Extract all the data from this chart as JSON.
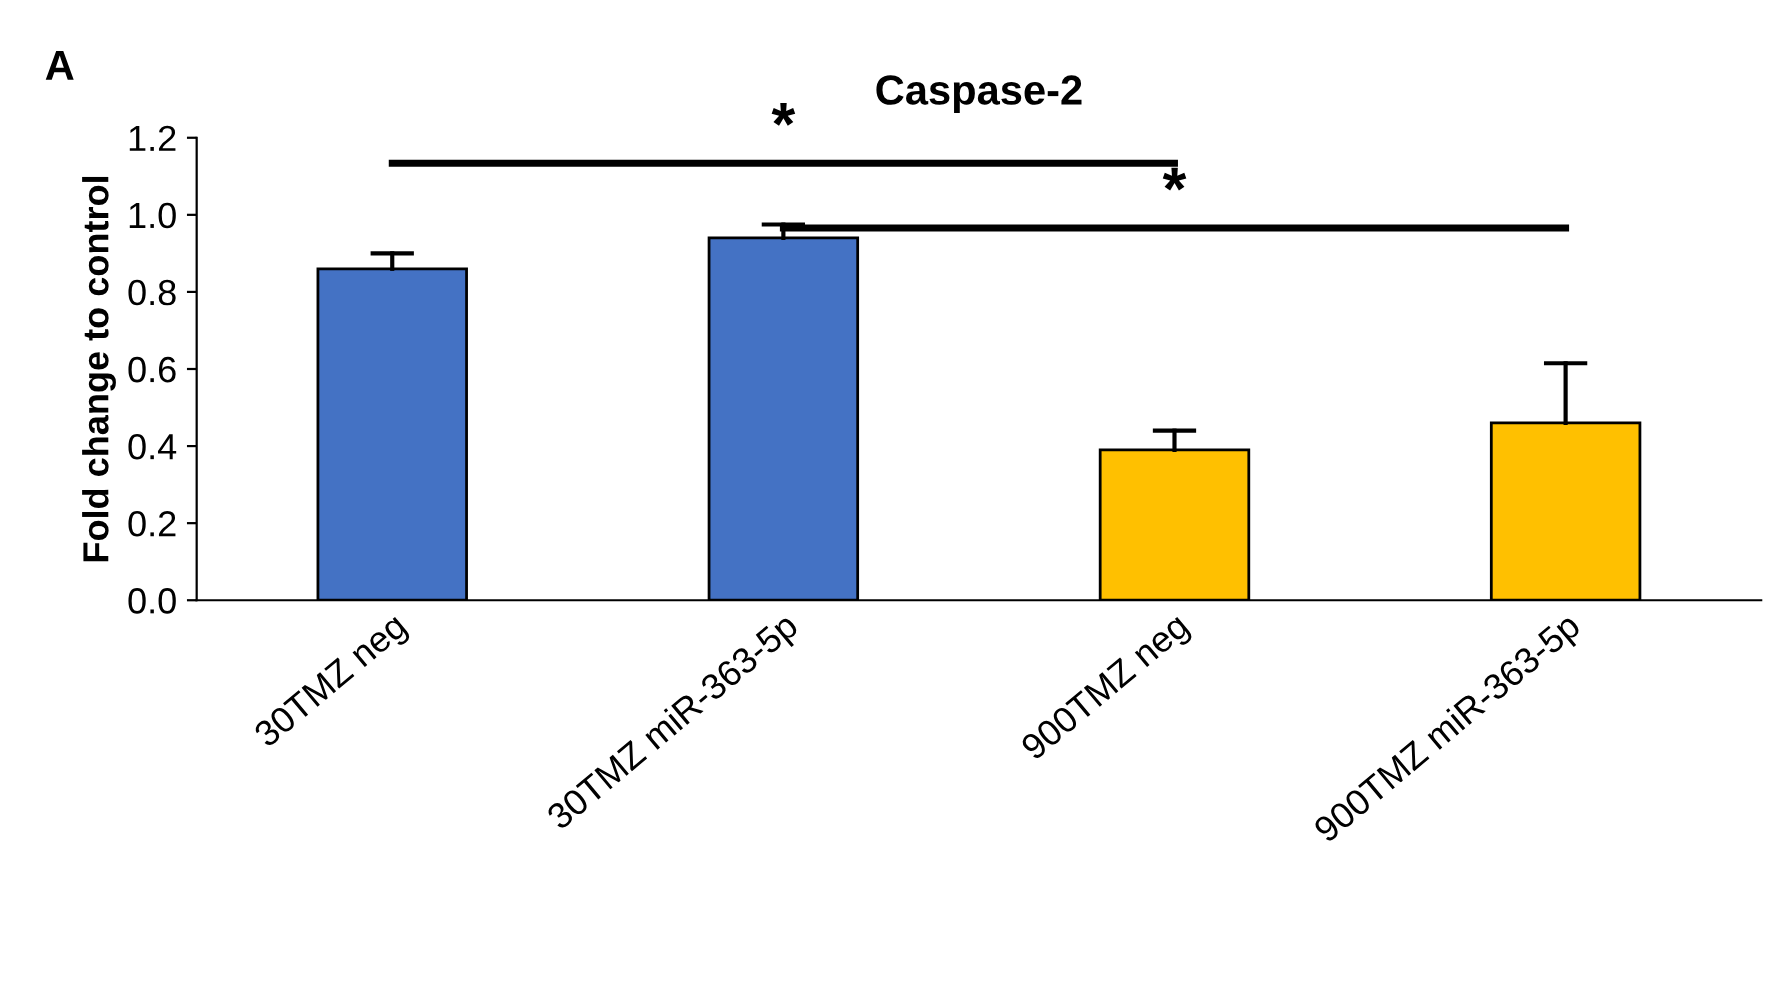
{
  "chart_data": {
    "type": "bar",
    "title": "Caspase-2",
    "ylabel": "Fold change to control",
    "categories": [
      "30TMZ neg",
      "30TMZ miR-363-5p",
      "900TMZ neg",
      "900TMZ miR-363-5p"
    ],
    "values": [
      0.86,
      0.94,
      0.39,
      0.46
    ],
    "colors": [
      "#4472c4",
      "#4472c4",
      "#ffc000",
      "#ffc000"
    ],
    "errors": [
      [
        0.86,
        0.9
      ],
      [
        0.94,
        0.975
      ],
      [
        0.39,
        0.44
      ],
      [
        0.46,
        0.615
      ]
    ],
    "ylim": [
      0,
      1.2
    ],
    "yticks": [
      {
        "value": 0,
        "label": "0.0"
      },
      {
        "value": 0.2,
        "label": "0.2"
      },
      {
        "value": 0.4,
        "label": "0.4"
      },
      {
        "value": 0.6,
        "label": "0.6"
      },
      {
        "value": 0.8,
        "label": "0.8"
      },
      {
        "value": 1.0,
        "label": "1.0"
      },
      {
        "value": 1.2,
        "label": "1.2"
      }
    ],
    "grid": false,
    "legend": false,
    "annotations": [
      "A",
      "*",
      "*"
    ]
  }
}
